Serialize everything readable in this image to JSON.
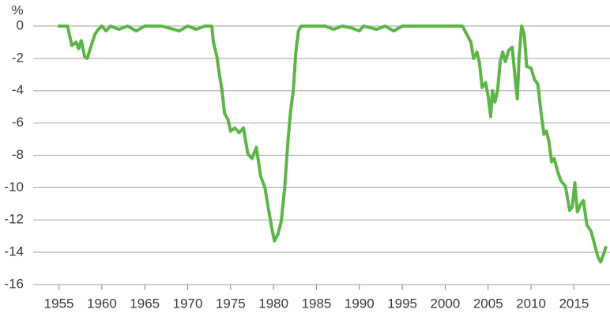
{
  "chart_data": {
    "type": "line",
    "y_label": "%",
    "color": "#5db548",
    "x": [
      1955,
      1956,
      1956.5,
      1957,
      1957.3,
      1957.6,
      1958,
      1958.3,
      1958.7,
      1959.2,
      1959.6,
      1960,
      1960.5,
      1961,
      1962,
      1963,
      1964,
      1965,
      1967,
      1969,
      1970,
      1971,
      1972,
      1972.8,
      1973,
      1973.4,
      1973.7,
      1974,
      1974.3,
      1974.7,
      1975,
      1975.5,
      1976,
      1976.5,
      1977,
      1977.5,
      1978,
      1978.5,
      1979,
      1979.5,
      1979.8,
      1980.1,
      1980.5,
      1980.9,
      1981.3,
      1981.7,
      1982,
      1982.3,
      1982.6,
      1982.9,
      1983.2,
      1986,
      1987,
      1988,
      1989,
      1990,
      1990.5,
      1992,
      1993,
      1994,
      1995,
      2002,
      2002.5,
      2003,
      2003.3,
      2003.7,
      2004,
      2004.3,
      2004.7,
      2005,
      2005.3,
      2005.5,
      2005.8,
      2006.1,
      2006.4,
      2006.7,
      2007,
      2007.4,
      2007.8,
      2008.2,
      2008.4,
      2008.6,
      2008.9,
      2009.2,
      2009.5,
      2010,
      2010.4,
      2010.8,
      2011.2,
      2011.5,
      2011.8,
      2012.1,
      2012.4,
      2012.7,
      2013.1,
      2013.5,
      2014,
      2014.5,
      2014.8,
      2015.1,
      2015.4,
      2015.8,
      2016.1,
      2016.5,
      2017,
      2017.4,
      2017.8,
      2018.1,
      2018.4,
      2018.7
    ],
    "values": [
      0,
      0,
      -1.2,
      -1.0,
      -1.4,
      -0.9,
      -1.9,
      -2.0,
      -1.3,
      -0.5,
      -0.2,
      0,
      -0.3,
      0,
      -0.2,
      0,
      -0.3,
      0,
      0,
      -0.3,
      0,
      -0.2,
      0,
      0,
      -1.0,
      -1.9,
      -3.0,
      -4.0,
      -5.4,
      -5.8,
      -6.5,
      -6.3,
      -6.6,
      -6.3,
      -7.9,
      -8.2,
      -7.5,
      -9.3,
      -10.0,
      -11.6,
      -12.5,
      -13.3,
      -12.9,
      -12.1,
      -10.0,
      -7.0,
      -5.2,
      -4.0,
      -1.6,
      -0.3,
      0,
      0,
      -0.2,
      0,
      -0.1,
      -0.3,
      0,
      -0.2,
      0,
      -0.3,
      0,
      0,
      -0.5,
      -1.0,
      -2.0,
      -1.6,
      -2.3,
      -3.8,
      -3.5,
      -4.3,
      -5.6,
      -4.0,
      -4.7,
      -4.0,
      -2.2,
      -1.6,
      -2.2,
      -1.5,
      -1.3,
      -3.5,
      -4.5,
      -2.0,
      0,
      -0.5,
      -2.5,
      -2.6,
      -3.3,
      -3.6,
      -5.5,
      -6.7,
      -6.5,
      -7.2,
      -8.4,
      -8.2,
      -9.0,
      -9.6,
      -9.9,
      -11.4,
      -11.2,
      -9.7,
      -11.5,
      -11.0,
      -10.8,
      -12.3,
      -12.7,
      -13.5,
      -14.3,
      -14.6,
      -14.2,
      -13.7
    ],
    "xlim": [
      1952,
      2019.2
    ],
    "xticks": [
      1955,
      1960,
      1965,
      1970,
      1975,
      1980,
      1985,
      1990,
      1995,
      2000,
      2005,
      2010,
      2015
    ],
    "ylim": [
      -16,
      0
    ],
    "yticks": [
      0,
      -2,
      -4,
      -6,
      -8,
      -10,
      -12,
      -14,
      -16
    ],
    "grid": true
  }
}
